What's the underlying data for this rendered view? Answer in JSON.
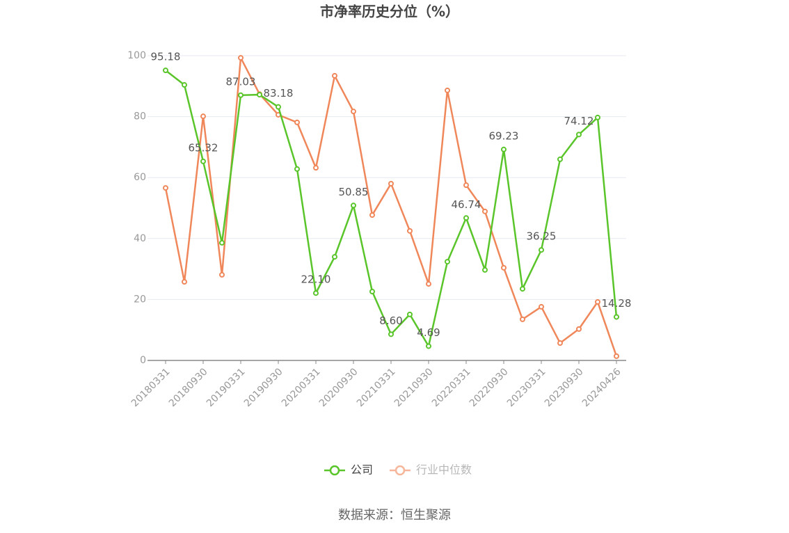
{
  "chart_data": {
    "type": "line",
    "title": "市净率历史分位（%）",
    "categories": [
      "20180331",
      null,
      "20180930",
      null,
      "20190331",
      null,
      "20190930",
      null,
      "20200331",
      null,
      "20200930",
      null,
      "20210331",
      null,
      "20210930",
      null,
      "20220331",
      null,
      "20220930",
      null,
      "20230331",
      null,
      "20230930",
      null,
      "20240426"
    ],
    "series": [
      {
        "name": "公司",
        "color": "#5ac52a",
        "values": [
          95.18,
          90.4,
          65.32,
          38.6,
          87.03,
          87.2,
          83.18,
          62.8,
          22.1,
          34.0,
          50.85,
          22.6,
          8.6,
          15.1,
          4.69,
          32.4,
          46.74,
          29.7,
          69.23,
          23.5,
          36.25,
          66.0,
          74.12,
          79.7,
          14.28
        ],
        "value_labels": [
          "95.18",
          null,
          "65.32",
          null,
          "87.03",
          null,
          "83.18",
          null,
          "22.10",
          null,
          "50.85",
          null,
          "8.60",
          null,
          "4.69",
          null,
          "46.74",
          null,
          "69.23",
          null,
          "36.25",
          null,
          "74.12",
          null,
          "14.28"
        ]
      },
      {
        "name": "行业中位数",
        "color": "#f0875a",
        "values": [
          56.6,
          25.8,
          80.1,
          28.1,
          99.3,
          87.4,
          80.6,
          78.1,
          63.2,
          93.4,
          81.7,
          47.7,
          58.0,
          42.5,
          25.1,
          88.6,
          57.5,
          48.9,
          30.4,
          13.5,
          17.6,
          5.7,
          10.3,
          19.2,
          1.4
        ]
      }
    ],
    "ylim": [
      0,
      100
    ],
    "yticks": [
      0,
      20,
      40,
      60,
      80,
      100
    ],
    "grid": true,
    "source": "数据来源：恒生聚源"
  }
}
